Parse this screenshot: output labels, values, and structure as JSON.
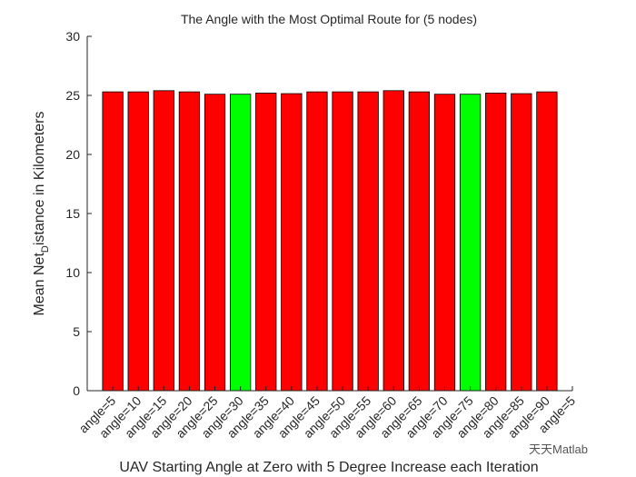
{
  "chart_data": {
    "type": "bar",
    "title": "The Angle with the Most Optimal Route for (5 nodes)",
    "xlabel": "UAV Starting Angle at Zero with 5 Degree Increase each Iteration",
    "ylabel_parts": [
      "Mean Net",
      "D",
      "istance in Kilometers"
    ],
    "x": [
      1,
      2,
      3,
      4,
      5,
      6,
      7,
      8,
      9,
      10,
      11,
      12,
      13,
      14,
      15,
      16,
      17,
      18
    ],
    "values": [
      25.3,
      25.3,
      25.4,
      25.3,
      25.1,
      25.1,
      25.2,
      25.15,
      25.3,
      25.3,
      25.3,
      25.4,
      25.3,
      25.1,
      25.1,
      25.2,
      25.15,
      25.3
    ],
    "colors": [
      "#ff0000",
      "#ff0000",
      "#ff0000",
      "#ff0000",
      "#ff0000",
      "#00ff00",
      "#ff0000",
      "#ff0000",
      "#ff0000",
      "#ff0000",
      "#ff0000",
      "#ff0000",
      "#ff0000",
      "#ff0000",
      "#00ff00",
      "#ff0000",
      "#ff0000",
      "#ff0000"
    ],
    "xlim": [
      0,
      19
    ],
    "xticks": [
      {
        "value": 1,
        "label": "angle=5"
      },
      {
        "value": 2,
        "label": "angle=10"
      },
      {
        "value": 3,
        "label": "angle=15"
      },
      {
        "value": 4,
        "label": "angle=20"
      },
      {
        "value": 5,
        "label": "angle=25"
      },
      {
        "value": 6,
        "label": "angle=30"
      },
      {
        "value": 7,
        "label": "angle=35"
      },
      {
        "value": 8,
        "label": "angle=40"
      },
      {
        "value": 9,
        "label": "angle=45"
      },
      {
        "value": 10,
        "label": "angle=50"
      },
      {
        "value": 11,
        "label": "angle=55"
      },
      {
        "value": 12,
        "label": "angle=60"
      },
      {
        "value": 13,
        "label": "angle=65"
      },
      {
        "value": 14,
        "label": "angle=70"
      },
      {
        "value": 15,
        "label": "angle=75"
      },
      {
        "value": 16,
        "label": "angle=80"
      },
      {
        "value": 17,
        "label": "angle=85"
      },
      {
        "value": 18,
        "label": "angle=90"
      },
      {
        "value": 19,
        "label": "angle=5"
      }
    ],
    "ylim": [
      0,
      30
    ],
    "yticks": [
      0,
      5,
      10,
      15,
      20,
      25,
      30
    ],
    "watermark": "天天Matlab"
  }
}
